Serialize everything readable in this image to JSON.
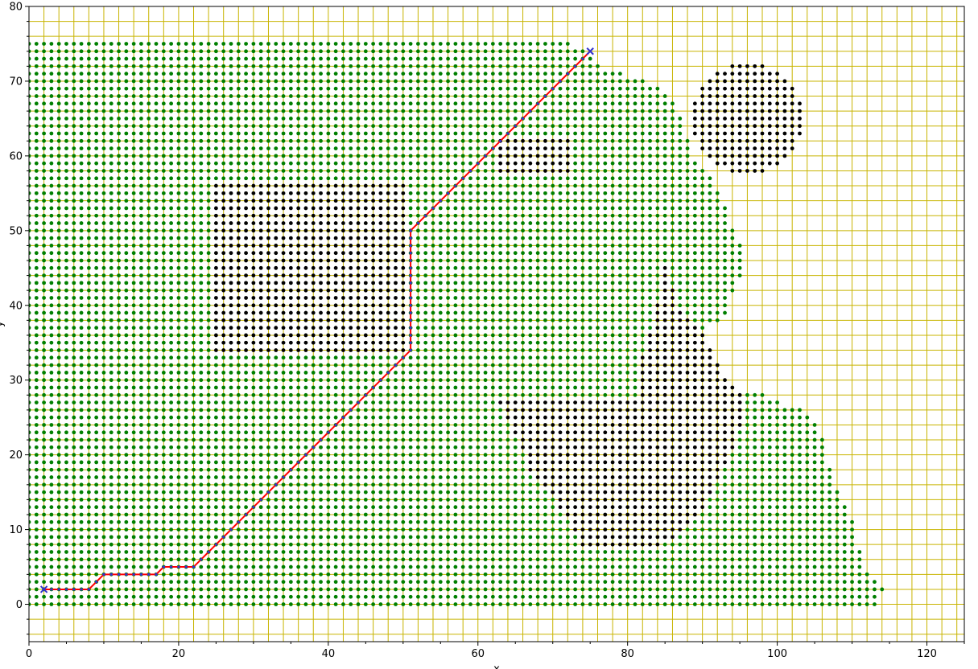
{
  "chart_data": {
    "type": "scatter",
    "title": "",
    "xlabel": "x",
    "ylabel": "y",
    "xlim": [
      0,
      125
    ],
    "ylim": [
      -5,
      80
    ],
    "x_ticks": [
      0,
      20,
      40,
      60,
      80,
      100,
      120
    ],
    "y_ticks": [
      0,
      10,
      20,
      30,
      40,
      50,
      60,
      70,
      80
    ],
    "grid": true,
    "grid_step": 2,
    "grid_color": "#c8b400",
    "colors": {
      "free": "#007f00",
      "obstacle": "#000000",
      "path": "#ff0000",
      "path_nodes": "#3333cc",
      "endpoints": "#3333cc"
    },
    "legend": "none",
    "free_rows": [
      {
        "y": 0,
        "x_max": 113
      },
      {
        "y": 1,
        "x_max": 113
      },
      {
        "y": 2,
        "x_max": 114
      },
      {
        "y": 3,
        "x_max": 113
      },
      {
        "y": 4,
        "x_max": 112
      },
      {
        "y": 5,
        "x_max": 111
      },
      {
        "y": 6,
        "x_max": 111
      },
      {
        "y": 7,
        "x_max": 111
      },
      {
        "y": 8,
        "x_max": 110
      },
      {
        "y": 9,
        "x_max": 110
      },
      {
        "y": 10,
        "x_max": 110
      },
      {
        "y": 11,
        "x_max": 110
      },
      {
        "y": 12,
        "x_max": 109
      },
      {
        "y": 13,
        "x_max": 109
      },
      {
        "y": 14,
        "x_max": 108
      },
      {
        "y": 15,
        "x_max": 108
      },
      {
        "y": 16,
        "x_max": 107
      },
      {
        "y": 17,
        "x_max": 107
      },
      {
        "y": 18,
        "x_max": 107
      },
      {
        "y": 19,
        "x_max": 106
      },
      {
        "y": 20,
        "x_max": 106
      },
      {
        "y": 21,
        "x_max": 106
      },
      {
        "y": 22,
        "x_max": 106
      },
      {
        "y": 23,
        "x_max": 105
      },
      {
        "y": 24,
        "x_max": 105
      },
      {
        "y": 25,
        "x_max": 104
      },
      {
        "y": 26,
        "x_max": 103
      },
      {
        "y": 27,
        "x_max": 100
      },
      {
        "y": 28,
        "x_max": 98
      },
      {
        "y": 29,
        "x_max": 92
      },
      {
        "y": 30,
        "x_max": 91
      },
      {
        "y": 31,
        "x_max": 90
      },
      {
        "y": 32,
        "x_max": 90
      },
      {
        "y": 33,
        "x_max": 89
      },
      {
        "y": 34,
        "x_max": 89
      },
      {
        "y": 35,
        "x_max": 89
      },
      {
        "y": 36,
        "x_max": 89
      },
      {
        "y": 37,
        "x_max": 90
      },
      {
        "y": 38,
        "x_max": 92
      },
      {
        "y": 39,
        "x_max": 93
      },
      {
        "y": 40,
        "x_max": 93
      },
      {
        "y": 41,
        "x_max": 93
      },
      {
        "y": 42,
        "x_max": 94
      },
      {
        "y": 43,
        "x_max": 94
      },
      {
        "y": 44,
        "x_max": 95
      },
      {
        "y": 45,
        "x_max": 95
      },
      {
        "y": 46,
        "x_max": 95
      },
      {
        "y": 47,
        "x_max": 95
      },
      {
        "y": 48,
        "x_max": 95
      },
      {
        "y": 49,
        "x_max": 94
      },
      {
        "y": 50,
        "x_max": 94
      },
      {
        "y": 51,
        "x_max": 93
      },
      {
        "y": 52,
        "x_max": 93
      },
      {
        "y": 53,
        "x_max": 93
      },
      {
        "y": 54,
        "x_max": 92
      },
      {
        "y": 55,
        "x_max": 92
      },
      {
        "y": 56,
        "x_max": 91
      },
      {
        "y": 57,
        "x_max": 91
      },
      {
        "y": 58,
        "x_max": 90
      },
      {
        "y": 59,
        "x_max": 89
      },
      {
        "y": 60,
        "x_max": 88
      },
      {
        "y": 61,
        "x_max": 88
      },
      {
        "y": 62,
        "x_max": 88
      },
      {
        "y": 63,
        "x_max": 87
      },
      {
        "y": 64,
        "x_max": 87
      },
      {
        "y": 65,
        "x_max": 87
      },
      {
        "y": 66,
        "x_max": 86
      },
      {
        "y": 67,
        "x_max": 86
      },
      {
        "y": 68,
        "x_max": 85
      },
      {
        "y": 69,
        "x_max": 84
      },
      {
        "y": 70,
        "x_max": 82
      },
      {
        "y": 71,
        "x_max": 79
      },
      {
        "y": 72,
        "x_max": 76
      },
      {
        "y": 73,
        "x_max": 75
      },
      {
        "y": 74,
        "x_max": 74
      },
      {
        "y": 75,
        "x_max": 72
      }
    ],
    "obstacles": [
      {
        "shape": "rect",
        "x": [
          25,
          50
        ],
        "y": [
          34,
          56
        ]
      },
      {
        "shape": "rect",
        "x": [
          63,
          72
        ],
        "y": [
          58,
          62
        ]
      },
      {
        "shape": "circle",
        "cx": 96,
        "cy": 65,
        "r": 7.6
      },
      {
        "shape": "polygon",
        "points": [
          [
            85,
            46
          ],
          [
            87,
            40
          ],
          [
            90,
            37
          ],
          [
            93,
            31
          ],
          [
            96,
            27
          ],
          [
            94,
            20
          ],
          [
            90,
            12
          ],
          [
            85,
            8
          ],
          [
            74,
            8
          ],
          [
            71,
            13
          ],
          [
            67,
            18
          ],
          [
            64,
            25
          ],
          [
            62,
            28
          ],
          [
            82,
            28
          ],
          [
            82,
            33
          ],
          [
            84,
            40
          ]
        ]
      }
    ],
    "path": [
      [
        2,
        2
      ],
      [
        8,
        2
      ],
      [
        10,
        4
      ],
      [
        17,
        4
      ],
      [
        18,
        5
      ],
      [
        22,
        5
      ],
      [
        51,
        34
      ],
      [
        51,
        50
      ],
      [
        75,
        74
      ]
    ],
    "start": [
      2,
      2
    ],
    "goal": [
      75,
      74
    ]
  }
}
